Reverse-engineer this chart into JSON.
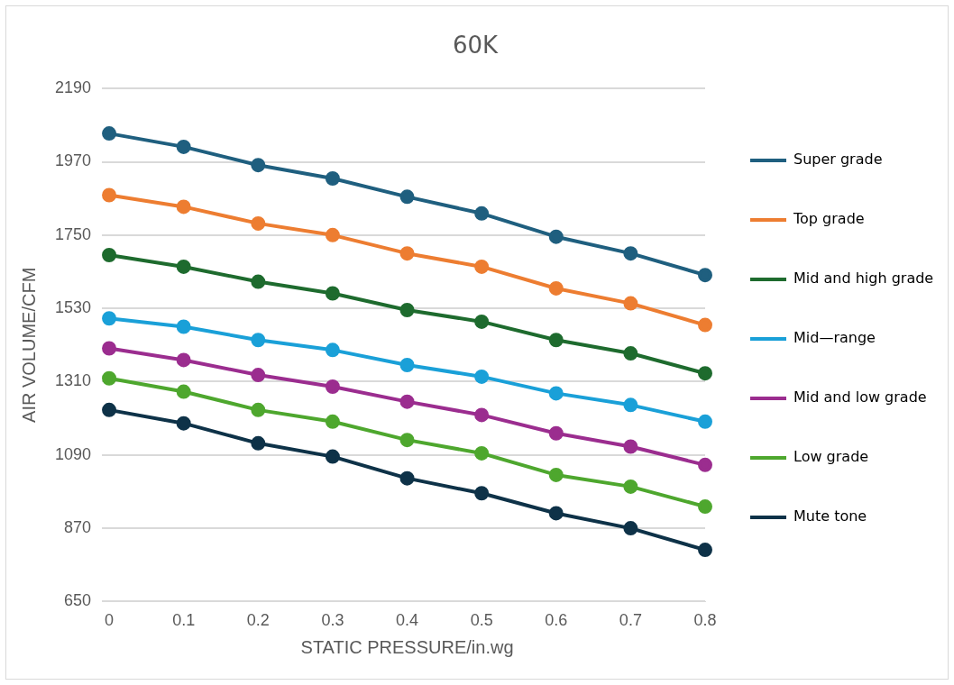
{
  "chart_data": {
    "type": "line",
    "title": "60K",
    "xlabel": "STATIC PRESSURE/in.wg",
    "ylabel": "AIR VOLUME/CFM",
    "categories": [
      "0",
      "0.1",
      "0.2",
      "0.3",
      "0.4",
      "0.5",
      "0.6",
      "0.7",
      "0.8"
    ],
    "ylim": [
      650,
      2190
    ],
    "yticks": [
      650,
      870,
      1090,
      1310,
      1530,
      1750,
      1970,
      2190
    ],
    "grid": "y",
    "legend": "right",
    "marker": "circle",
    "line_style": "solid",
    "series": [
      {
        "name": "Super grade",
        "color": "#1f5f7f",
        "values": [
          2055,
          2015,
          1960,
          1920,
          1865,
          1815,
          1745,
          1695,
          1630
        ]
      },
      {
        "name": "Top grade",
        "color": "#ed7d31",
        "values": [
          1870,
          1835,
          1785,
          1750,
          1695,
          1655,
          1590,
          1545,
          1480
        ]
      },
      {
        "name": "Mid and high grade",
        "color": "#1e6b2e",
        "values": [
          1690,
          1655,
          1610,
          1575,
          1525,
          1490,
          1435,
          1395,
          1335
        ]
      },
      {
        "name": "Mid—range",
        "color": "#1aa0d8",
        "values": [
          1500,
          1475,
          1435,
          1405,
          1360,
          1325,
          1275,
          1240,
          1190
        ]
      },
      {
        "name": "Mid and low grade",
        "color": "#9b2d8f",
        "values": [
          1410,
          1375,
          1330,
          1295,
          1250,
          1210,
          1155,
          1115,
          1060
        ]
      },
      {
        "name": "Low grade",
        "color": "#4ea72e",
        "values": [
          1320,
          1280,
          1225,
          1190,
          1135,
          1095,
          1030,
          995,
          935
        ]
      },
      {
        "name": "Mute tone",
        "color": "#0e3248",
        "values": [
          1225,
          1185,
          1125,
          1085,
          1020,
          975,
          915,
          870,
          805
        ]
      }
    ]
  }
}
